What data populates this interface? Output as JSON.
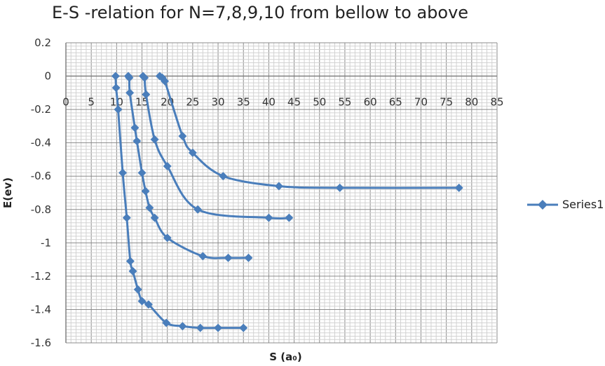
{
  "chart_data": {
    "type": "scatter",
    "title": "E-S -relation for N=7,8,9,10 from bellow to above",
    "xlabel": "S (a₀)",
    "ylabel": "E(ev)",
    "xlim": [
      0,
      85
    ],
    "ylim": [
      -1.6,
      0.2
    ],
    "x_ticks": [
      0,
      5,
      10,
      15,
      20,
      25,
      30,
      35,
      40,
      45,
      50,
      55,
      60,
      65,
      70,
      75,
      80,
      85
    ],
    "y_ticks": [
      0.2,
      0,
      -0.2,
      -0.4,
      -0.6,
      -0.8,
      -1,
      -1.2,
      -1.4,
      -1.6
    ],
    "grid": true,
    "legend_position": "right",
    "marker": "diamond",
    "color": "#4A7EBB",
    "series": [
      {
        "name": "Series1",
        "curves": [
          {
            "x": [
              9.8,
              9.9,
              10.3,
              11.2,
              12.0,
              12.7,
              13.2,
              14.2,
              15.0,
              16.3,
              19.8,
              23.0,
              26.5,
              30.0,
              35.0
            ],
            "y": [
              0,
              -0.07,
              -0.2,
              -0.58,
              -0.85,
              -1.11,
              -1.17,
              -1.28,
              -1.35,
              -1.37,
              -1.48,
              -1.5,
              -1.51,
              -1.51,
              -1.51
            ]
          },
          {
            "x": [
              12.3,
              12.5,
              12.6,
              13.6,
              14.0,
              15.0,
              15.7,
              16.5,
              17.5,
              20.0,
              27.0,
              32.0,
              36.0
            ],
            "y": [
              0,
              -0.01,
              -0.1,
              -0.31,
              -0.39,
              -0.58,
              -0.69,
              -0.79,
              -0.85,
              -0.97,
              -1.08,
              -1.09,
              -1.09
            ]
          },
          {
            "x": [
              15.2,
              15.5,
              15.8,
              17.5,
              20.0,
              26.0,
              40.0,
              44.0
            ],
            "y": [
              0,
              -0.01,
              -0.11,
              -0.38,
              -0.54,
              -0.8,
              -0.85,
              -0.85
            ]
          },
          {
            "x": [
              18.5,
              19.0,
              19.5,
              23.0,
              25.0,
              31.0,
              42.0,
              54.0,
              77.5
            ],
            "y": [
              0,
              -0.01,
              -0.03,
              -0.36,
              -0.46,
              -0.6,
              -0.66,
              -0.67,
              -0.67
            ]
          }
        ]
      }
    ]
  }
}
